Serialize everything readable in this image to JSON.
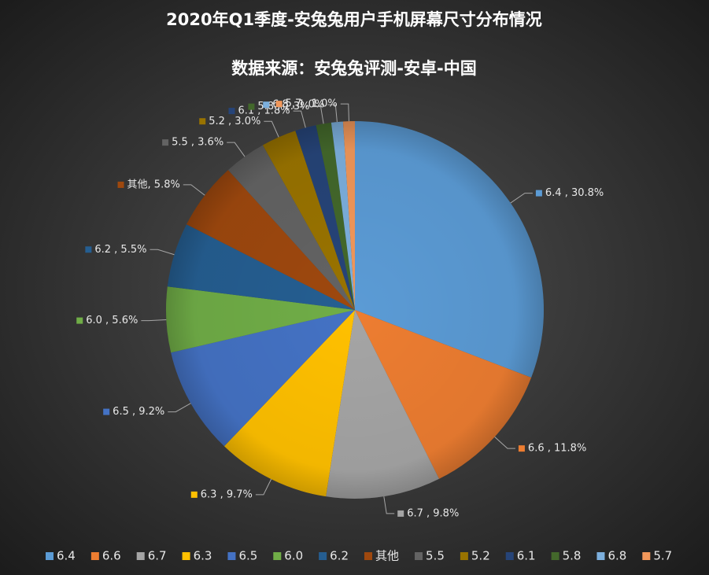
{
  "chart_data": {
    "type": "pie",
    "title": "2020年Q1季度-安兔兔用户手机屏幕尺寸分布情况",
    "subtitle": "数据来源：安兔兔评测-安卓-中国",
    "categories": [
      "6.4",
      "6.6",
      "6.7",
      "6.3",
      "6.5",
      "6.0",
      "6.2",
      "其他",
      "5.5",
      "5.2",
      "6.1",
      "5.8",
      "6.8",
      "5.7"
    ],
    "values": [
      30.8,
      11.8,
      9.8,
      9.7,
      9.2,
      5.6,
      5.5,
      5.8,
      3.6,
      3.0,
      1.8,
      1.3,
      1.0,
      1.0
    ],
    "value_labels": [
      "6.4 , 30.8%",
      "6.6 , 11.8%",
      "6.7 , 9.8%",
      "6.3 , 9.7%",
      "6.5 , 9.2%",
      "6.0 , 5.6%",
      "6.2 , 5.5%",
      "其他, 5.8%",
      "5.5 , 3.6%",
      "5.2 , 3.0%",
      "6.1 , 1.8%",
      "5.8 , 1.3%",
      "6.8 , 1.0%",
      "5.7 , 1.0%"
    ],
    "colors": [
      "#5b9bd5",
      "#ed7d31",
      "#a5a5a5",
      "#ffc000",
      "#4472c4",
      "#70ad47",
      "#255e91",
      "#9e480e",
      "#636363",
      "#997300",
      "#264478",
      "#43682b",
      "#7cafdd",
      "#f1975a"
    ],
    "legend": "bottom"
  }
}
